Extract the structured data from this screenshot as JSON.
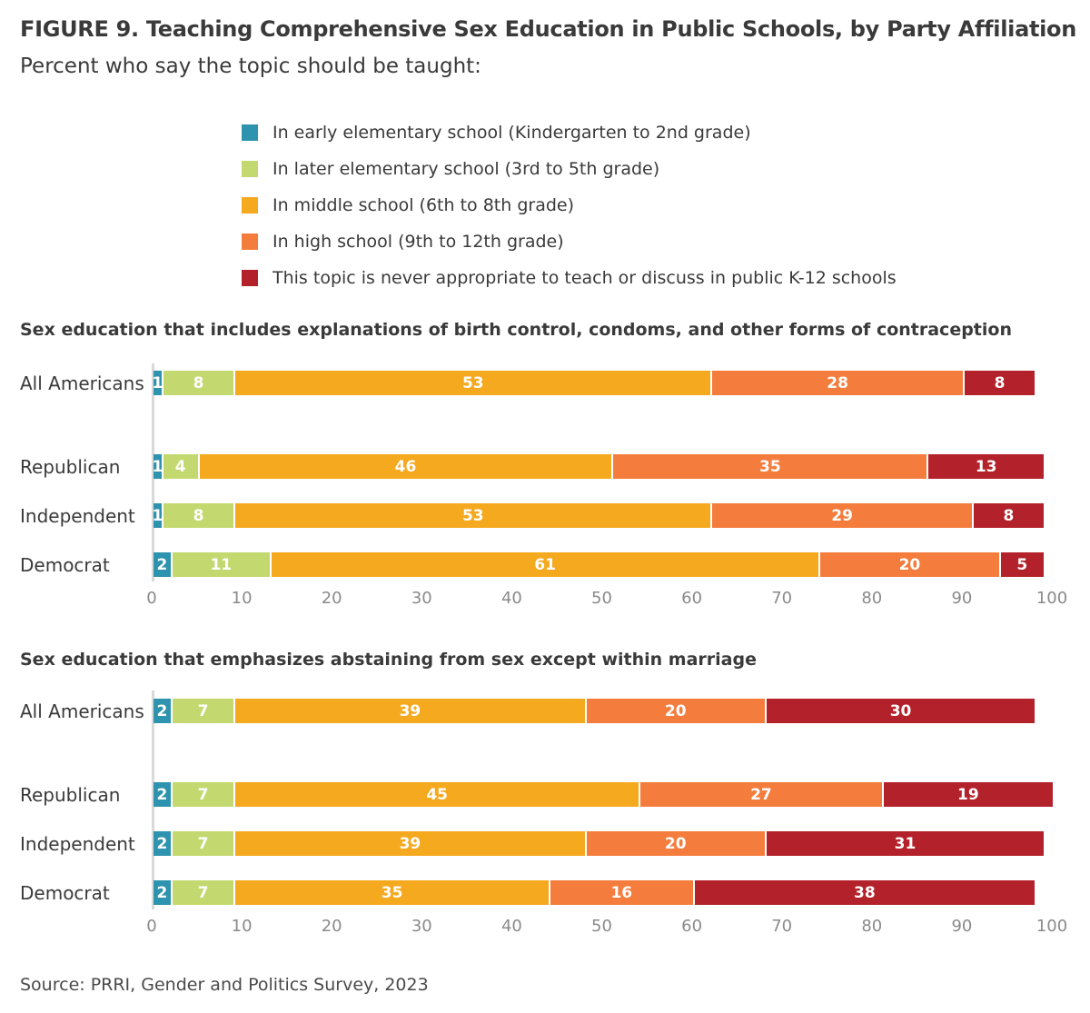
{
  "title": "FIGURE 9.  Teaching Comprehensive Sex Education in Public Schools, by Party Affiliation",
  "subtitle": "Percent who say the topic should be taught:",
  "source": "Source: PRRI, Gender and Politics Survey, 2023",
  "chart_data": {
    "type": "bar",
    "orientation": "horizontal-stacked",
    "legend": [
      {
        "label": "In early elementary school (Kindergarten to 2nd grade)",
        "color": "#2E93AE"
      },
      {
        "label": "In later elementary school (3rd to 5th grade)",
        "color": "#C3D96F"
      },
      {
        "label": "In middle school (6th to 8th grade)",
        "color": "#F5A91F"
      },
      {
        "label": "In high school (9th to 12th grade)",
        "color": "#F47D3E"
      },
      {
        "label": "This topic is never appropriate to teach or discuss in public K-12 schools",
        "color": "#B3222A"
      }
    ],
    "xlim": [
      0,
      100
    ],
    "xticks": [
      "0",
      "10",
      "20",
      "30",
      "40",
      "50",
      "60",
      "70",
      "80",
      "90",
      "100"
    ],
    "panels": [
      {
        "title": "Sex education that includes explanations of birth control, condoms, and other forms of contraception",
        "categories": [
          "All Americans",
          "Republican",
          "Independent",
          "Democrat"
        ],
        "values": [
          [
            1,
            8,
            53,
            28,
            8
          ],
          [
            1,
            4,
            46,
            35,
            13
          ],
          [
            1,
            8,
            53,
            29,
            8
          ],
          [
            2,
            11,
            61,
            20,
            5
          ]
        ]
      },
      {
        "title": "Sex education that emphasizes abstaining from sex except within marriage",
        "categories": [
          "All Americans",
          "Republican",
          "Independent",
          "Democrat"
        ],
        "values": [
          [
            2,
            7,
            39,
            20,
            30
          ],
          [
            2,
            7,
            45,
            27,
            19
          ],
          [
            2,
            7,
            39,
            20,
            31
          ],
          [
            2,
            7,
            35,
            16,
            38
          ]
        ]
      }
    ]
  }
}
